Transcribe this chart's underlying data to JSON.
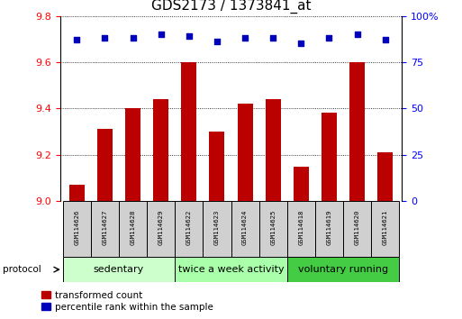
{
  "title": "GDS2173 / 1373841_at",
  "samples": [
    "GSM114626",
    "GSM114627",
    "GSM114628",
    "GSM114629",
    "GSM114622",
    "GSM114623",
    "GSM114624",
    "GSM114625",
    "GSM114618",
    "GSM114619",
    "GSM114620",
    "GSM114621"
  ],
  "transformed_counts": [
    9.07,
    9.31,
    9.4,
    9.44,
    9.6,
    9.3,
    9.42,
    9.44,
    9.15,
    9.38,
    9.6,
    9.21
  ],
  "percentile_ranks": [
    87,
    88,
    88,
    90,
    89,
    86,
    88,
    88,
    85,
    88,
    90,
    87
  ],
  "groups": [
    {
      "label": "sedentary",
      "start": 0,
      "end": 4
    },
    {
      "label": "twice a week activity",
      "start": 4,
      "end": 8
    },
    {
      "label": "voluntary running",
      "start": 8,
      "end": 12
    }
  ],
  "group_colors": [
    "#ccffcc",
    "#aaffaa",
    "#44cc44"
  ],
  "bar_color": "#bb0000",
  "dot_color": "#0000bb",
  "ylim_left": [
    9.0,
    9.8
  ],
  "yticks_left": [
    9.0,
    9.2,
    9.4,
    9.6,
    9.8
  ],
  "ylim_right": [
    0,
    100
  ],
  "yticks_right": [
    0,
    25,
    50,
    75,
    100
  ],
  "bar_width": 0.55,
  "title_fontsize": 11,
  "tick_fontsize": 8,
  "group_label_fontsize": 8,
  "legend_fontsize": 7.5,
  "protocol_label": "protocol"
}
